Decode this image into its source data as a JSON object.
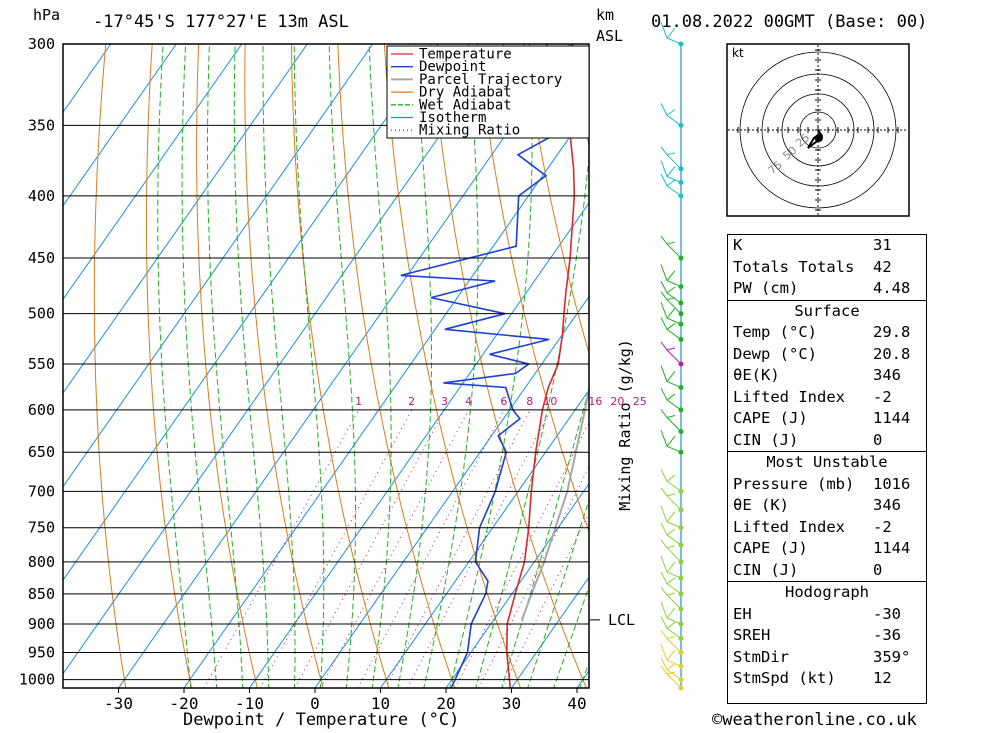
{
  "header": {
    "unit_left": "hPa",
    "location": "-17°45'S  177°27'E  13m  ASL",
    "unit_km": "km",
    "unit_asl": "ASL",
    "datetime": "01.08.2022  00GMT  (Base: 00)"
  },
  "chart_data": {
    "type": "line",
    "subtype": "skew-T log-p",
    "xlabel": "Dewpoint / Temperature (°C)",
    "y2label": "Mixing Ratio (g/kg)",
    "x_ticks": [
      -30,
      -20,
      -10,
      0,
      10,
      20,
      30,
      40
    ],
    "pressure_ticks": [
      300,
      350,
      400,
      450,
      500,
      550,
      600,
      650,
      700,
      750,
      800,
      850,
      900,
      950,
      1000
    ],
    "ylim_hpa": [
      1016,
      300
    ],
    "y_scale": "log",
    "legend": [
      "Temperature",
      "Dewpoint",
      "Parcel Trajectory",
      "Dry Adiabat",
      "Wet Adiabat",
      "Isotherm",
      "Mixing Ratio"
    ],
    "legend_position": "top-right",
    "colors": {
      "Temperature": "#e0262a",
      "Dewpoint": "#1b3fd8",
      "Parcel Trajectory": "#a8a8a8",
      "Dry Adiabat": "#e07a1a",
      "Wet Adiabat": "#22b022",
      "Isotherm": "#1c8fe0",
      "Mixing Ratio": "#c0187a"
    },
    "mixing_ratio_labels": [
      "1",
      "2",
      "3",
      "4",
      "6",
      "8",
      "10",
      "16",
      "20",
      "25"
    ],
    "lcl_label": "LCL",
    "lcl_pressure": 893,
    "km_ticks": [],
    "series": [
      {
        "name": "Temperature",
        "points": [
          [
            1016,
            29.8
          ],
          [
            1000,
            28.8
          ],
          [
            950,
            25.5
          ],
          [
            900,
            22.5
          ],
          [
            850,
            20.5
          ],
          [
            800,
            18.5
          ],
          [
            750,
            15.5
          ],
          [
            700,
            12.0
          ],
          [
            650,
            8.5
          ],
          [
            600,
            5.0
          ],
          [
            575,
            3.5
          ],
          [
            550,
            2.5
          ],
          [
            520,
            0.0
          ],
          [
            500,
            -2.0
          ],
          [
            480,
            -4.0
          ],
          [
            450,
            -7.0
          ],
          [
            400,
            -13.0
          ],
          [
            380,
            -16.0
          ],
          [
            360,
            -19.5
          ],
          [
            340,
            -23.0
          ],
          [
            320,
            -28.5
          ],
          [
            300,
            -33.5
          ]
        ]
      },
      {
        "name": "Dewpoint",
        "points": [
          [
            1016,
            20.8
          ],
          [
            1000,
            20.5
          ],
          [
            950,
            19.5
          ],
          [
            900,
            17.0
          ],
          [
            850,
            16.0
          ],
          [
            830,
            15.0
          ],
          [
            800,
            11.0
          ],
          [
            750,
            8.0
          ],
          [
            700,
            6.5
          ],
          [
            650,
            4.0
          ],
          [
            630,
            1.0
          ],
          [
            610,
            2.5
          ],
          [
            600,
            0.5
          ],
          [
            575,
            -3.0
          ],
          [
            570,
            -13.0
          ],
          [
            560,
            -3.0
          ],
          [
            550,
            -2.0
          ],
          [
            540,
            -9.0
          ],
          [
            525,
            -1.5
          ],
          [
            515,
            -18.5
          ],
          [
            500,
            -11.0
          ],
          [
            485,
            -24.0
          ],
          [
            470,
            -16.0
          ],
          [
            465,
            -31.0
          ],
          [
            440,
            -16.5
          ],
          [
            400,
            -21.5
          ],
          [
            385,
            -19.5
          ],
          [
            370,
            -26.0
          ],
          [
            350,
            -21.0
          ],
          [
            335,
            -28.5
          ],
          [
            320,
            -27.5
          ],
          [
            300,
            -29.5
          ]
        ]
      },
      {
        "name": "Parcel Trajectory",
        "points": [
          [
            893,
            24.3
          ],
          [
            850,
            23.0
          ],
          [
            800,
            21.5
          ],
          [
            700,
            17.5
          ],
          [
            600,
            11.5
          ],
          [
            500,
            4.0
          ],
          [
            450,
            -0.5
          ],
          [
            400,
            -6.5
          ],
          [
            370,
            -10.5
          ],
          [
            300,
            -21.0
          ]
        ]
      }
    ]
  },
  "wind_profile": {
    "levels_hpa": [
      1016,
      1000,
      975,
      950,
      925,
      900,
      875,
      850,
      825,
      800,
      775,
      750,
      725,
      700,
      650,
      625,
      600,
      575,
      550,
      525,
      510,
      500,
      490,
      475,
      450,
      400,
      390,
      380,
      350,
      300
    ]
  },
  "hodograph": {
    "unit": "kt",
    "ring_labels": [
      "25",
      "50",
      "75"
    ]
  },
  "indices": {
    "top": [
      {
        "key": "K",
        "value": "31"
      },
      {
        "key": "Totals Totals",
        "value": "42"
      },
      {
        "key": "PW (cm)",
        "value": "4.48"
      }
    ],
    "surface": {
      "title": "Surface",
      "rows": [
        {
          "key": "Temp (°C)",
          "value": "29.8"
        },
        {
          "key": "Dewp (°C)",
          "value": "20.8"
        },
        {
          "key": "θE(K)",
          "value": "346"
        },
        {
          "key": "Lifted Index",
          "value": "-2"
        },
        {
          "key": "CAPE (J)",
          "value": "1144"
        },
        {
          "key": "CIN (J)",
          "value": "0"
        }
      ]
    },
    "most_unstable": {
      "title": "Most Unstable",
      "rows": [
        {
          "key": "Pressure (mb)",
          "value": "1016"
        },
        {
          "key": "θE (K)",
          "value": "346"
        },
        {
          "key": "Lifted Index",
          "value": "-2"
        },
        {
          "key": "CAPE (J)",
          "value": "1144"
        },
        {
          "key": "CIN (J)",
          "value": "0"
        }
      ]
    },
    "hodograph": {
      "title": "Hodograph",
      "rows": [
        {
          "key": "EH",
          "value": "-30"
        },
        {
          "key": "SREH",
          "value": "-36"
        },
        {
          "key": "StmDir",
          "value": "359°"
        },
        {
          "key": "StmSpd (kt)",
          "value": "12"
        }
      ]
    }
  },
  "copyright": "©weatheronline.co.uk"
}
